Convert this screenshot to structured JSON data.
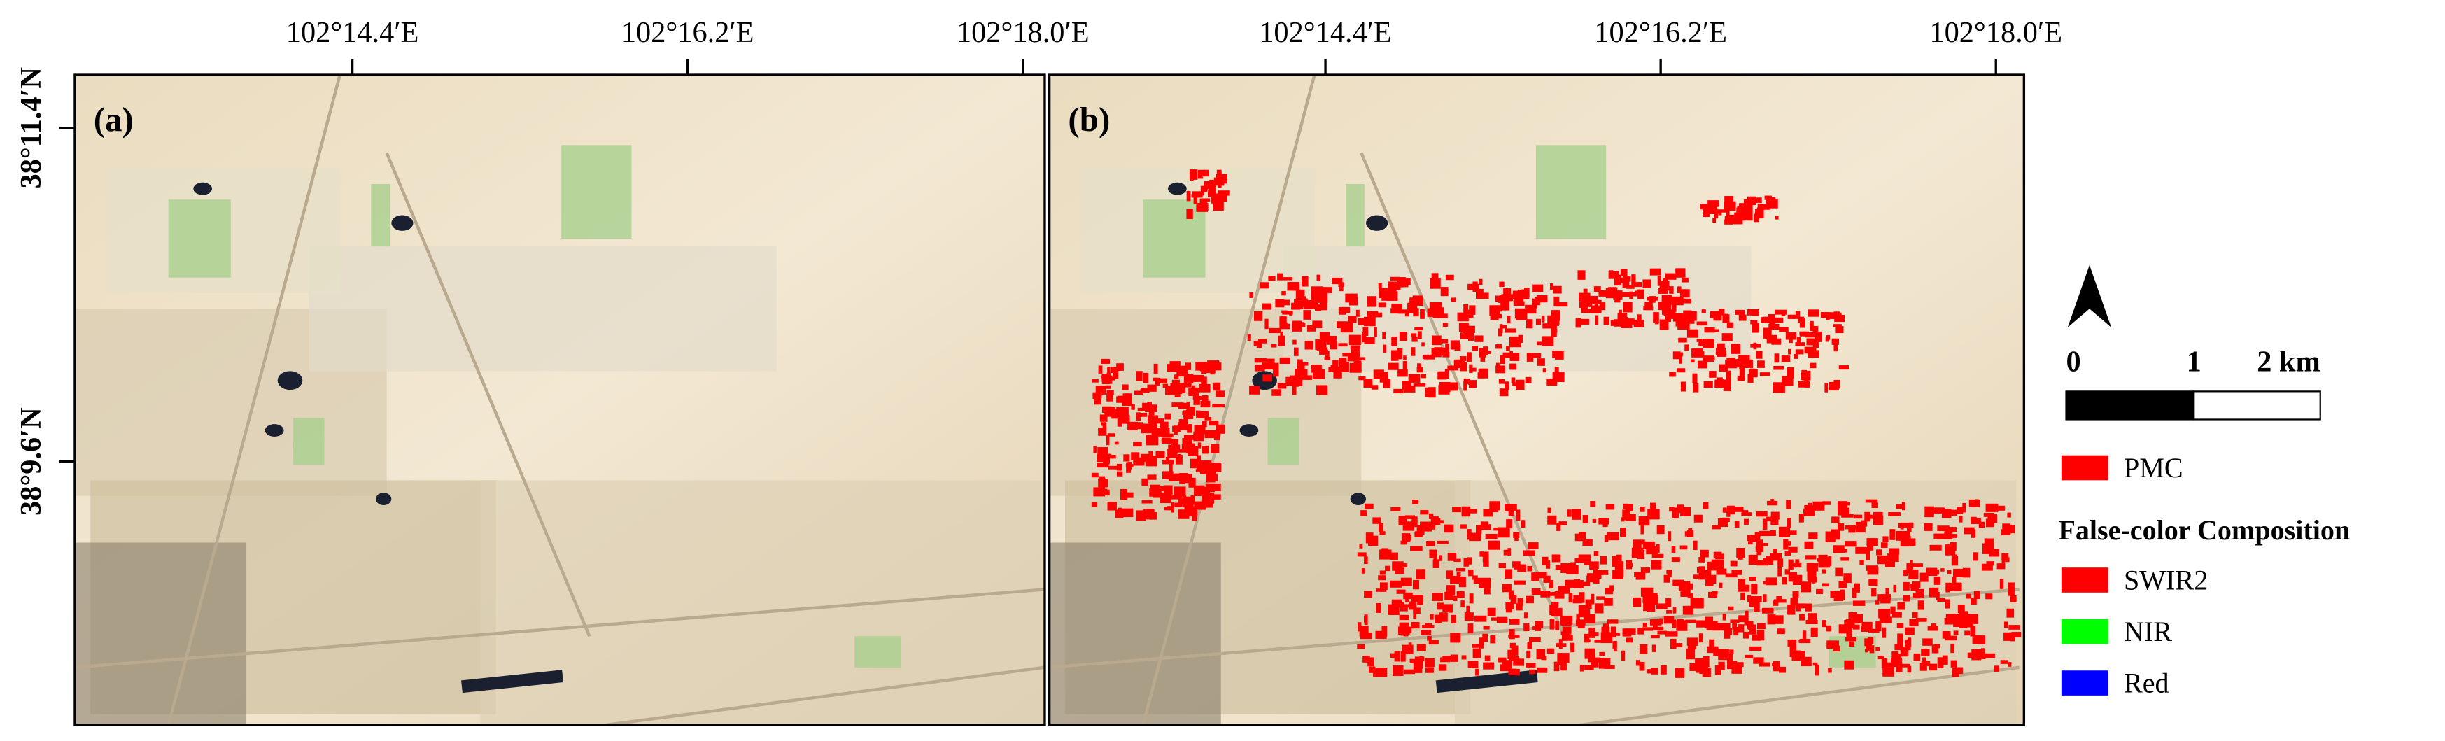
{
  "panels": [
    {
      "label": "(a)"
    },
    {
      "label": "(b)"
    }
  ],
  "longitude_ticks": [
    "102°14.4′E",
    "102°16.2′E",
    "102°18.0′E"
  ],
  "latitude_ticks": [
    "38°11.4′N",
    "38°9.6′N"
  ],
  "scale_bar": {
    "labels": [
      "0",
      "1",
      "2 km"
    ]
  },
  "legend": {
    "items": [
      {
        "label": "PMC",
        "color": "#ff0000"
      }
    ],
    "section_title": "False-color Composition",
    "bands": [
      {
        "label": "SWIR2",
        "color": "#ff0000"
      },
      {
        "label": "NIR",
        "color": "#00ff00"
      },
      {
        "label": "Red",
        "color": "#0000ff"
      }
    ]
  }
}
